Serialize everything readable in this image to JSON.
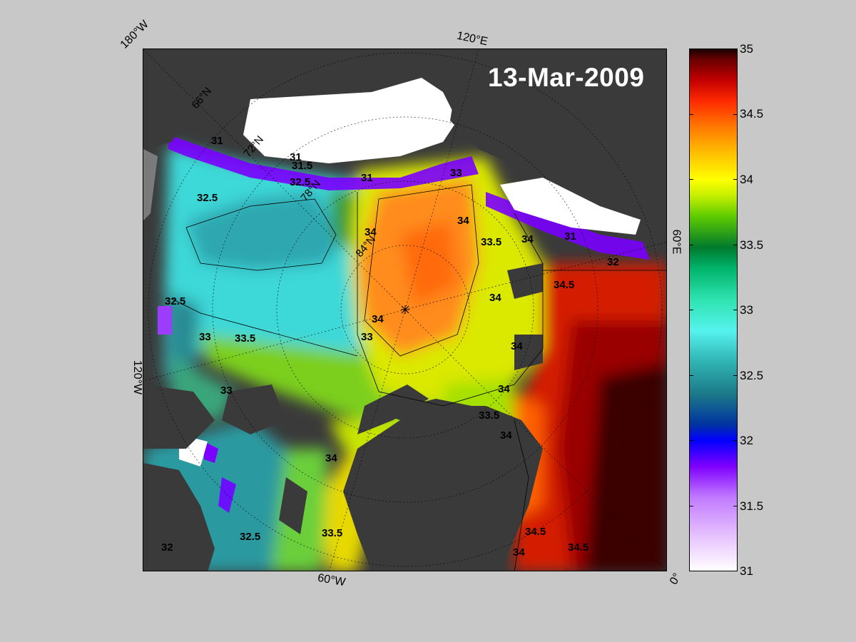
{
  "map": {
    "date": "13-Mar-2009",
    "lon_labels": {
      "top_left": "180°W",
      "top_mid": "120°E",
      "left_mid": "120°W",
      "bottom_mid": "60°W",
      "bottom_right": "0°",
      "right_mid": "60°E"
    },
    "lat_labels": [
      "66°N",
      "72°N",
      "78°N",
      "84°N"
    ],
    "contour_labels": [
      "31",
      "31.5",
      "32",
      "32.5",
      "33",
      "33.5",
      "34",
      "34.5"
    ],
    "colors": {
      "land": "#3a3a3a",
      "ice": "#ffffff",
      "background": "#c8c8c8"
    }
  },
  "colorbar": {
    "ticks": [
      "35",
      "34.5",
      "34",
      "33.5",
      "33",
      "32.5",
      "32",
      "31.5",
      "31"
    ],
    "min": 31,
    "max": 35
  }
}
